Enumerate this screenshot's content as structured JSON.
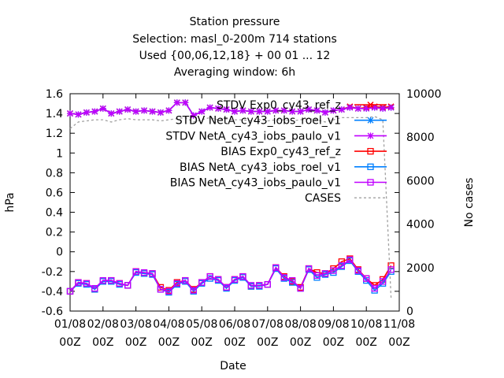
{
  "chart_data": {
    "type": "line",
    "title_lines": [
      "Station pressure",
      "Selection: masl_0-200m    714 stations",
      "Used {00,06,12,18} + 00 01 ... 12",
      "Averaging window:  6h"
    ],
    "xlabel": "Date",
    "ylabel": "hPa",
    "y2label": "No cases",
    "ylim": [
      -0.6,
      1.6
    ],
    "y2lim": [
      0,
      10000
    ],
    "yticks": [
      "-0.6",
      "-0.4",
      "-0.2",
      "0",
      "0.2",
      "0.4",
      "0.6",
      "0.8",
      "1",
      "1.2",
      "1.4",
      "1.6"
    ],
    "y2ticks": [
      "0",
      "2000",
      "4000",
      "6000",
      "8000",
      "10000"
    ],
    "xticks": [
      [
        "01/08",
        "00Z"
      ],
      [
        "02/08",
        "00Z"
      ],
      [
        "03/08",
        "00Z"
      ],
      [
        "04/08",
        "00Z"
      ],
      [
        "05/08",
        "00Z"
      ],
      [
        "06/08",
        "00Z"
      ],
      [
        "07/08",
        "00Z"
      ],
      [
        "08/08",
        "00Z"
      ],
      [
        "09/08",
        "00Z"
      ],
      [
        "10/08",
        "00Z"
      ],
      [
        "11/08",
        "00Z"
      ]
    ],
    "xlim_days": [
      0,
      10
    ],
    "x_days": [
      0.0,
      0.25,
      0.5,
      0.75,
      1.0,
      1.25,
      1.5,
      1.75,
      2.0,
      2.25,
      2.5,
      2.75,
      3.0,
      3.25,
      3.5,
      3.75,
      4.0,
      4.25,
      4.5,
      4.75,
      5.0,
      5.25,
      5.5,
      5.75,
      6.0,
      6.25,
      6.5,
      6.75,
      7.0,
      7.25,
      7.5,
      7.75,
      8.0,
      8.25,
      8.5,
      8.75,
      9.0,
      9.25,
      9.5,
      9.75
    ],
    "legend_position": "top-right",
    "grid": false,
    "series": [
      {
        "name": "STDV Exp0_cy43_ref_z",
        "axis": "y",
        "color": "#ff0000",
        "marker": "x",
        "values": [
          1.4,
          1.39,
          1.41,
          1.42,
          1.45,
          1.4,
          1.42,
          1.44,
          1.42,
          1.43,
          1.42,
          1.41,
          1.43,
          1.51,
          1.51,
          1.38,
          1.42,
          1.46,
          1.45,
          1.44,
          1.42,
          1.43,
          1.42,
          1.42,
          1.42,
          1.43,
          1.43,
          1.42,
          1.42,
          1.44,
          1.43,
          1.41,
          1.43,
          1.44,
          1.47,
          1.45,
          1.46,
          1.47,
          1.46,
          1.47
        ]
      },
      {
        "name": "STDV NetA_cy43_iobs_roel_v1",
        "axis": "y",
        "color": "#0080ff",
        "marker": "star",
        "values": [
          1.4,
          1.39,
          1.41,
          1.42,
          1.45,
          1.4,
          1.42,
          1.44,
          1.42,
          1.43,
          1.42,
          1.41,
          1.43,
          1.51,
          1.51,
          1.38,
          1.42,
          1.46,
          1.45,
          1.44,
          1.42,
          1.43,
          1.42,
          1.42,
          1.42,
          1.43,
          1.43,
          1.42,
          1.42,
          1.44,
          1.43,
          1.41,
          1.43,
          1.44,
          1.46,
          1.45,
          1.45,
          1.46,
          1.45,
          1.46
        ]
      },
      {
        "name": "STDV NetA_cy43_iobs_paulo_v1",
        "axis": "y",
        "color": "#c000ff",
        "marker": "star",
        "values": [
          1.4,
          1.39,
          1.41,
          1.42,
          1.45,
          1.4,
          1.42,
          1.44,
          1.42,
          1.43,
          1.42,
          1.41,
          1.43,
          1.51,
          1.51,
          1.38,
          1.42,
          1.46,
          1.45,
          1.44,
          1.42,
          1.43,
          1.42,
          1.42,
          1.42,
          1.43,
          1.43,
          1.42,
          1.42,
          1.44,
          1.43,
          1.41,
          1.43,
          1.44,
          1.46,
          1.45,
          1.45,
          1.46,
          1.45,
          1.46
        ]
      },
      {
        "name": "BIAS Exp0_cy43_ref_z",
        "axis": "y",
        "color": "#ff0000",
        "marker": "square",
        "values": [
          -0.4,
          -0.31,
          -0.32,
          -0.38,
          -0.3,
          -0.29,
          -0.32,
          -0.34,
          -0.2,
          -0.22,
          -0.22,
          -0.36,
          -0.39,
          -0.31,
          -0.29,
          -0.38,
          -0.31,
          -0.25,
          -0.28,
          -0.36,
          -0.28,
          -0.25,
          -0.35,
          -0.34,
          -0.33,
          -0.16,
          -0.25,
          -0.3,
          -0.36,
          -0.17,
          -0.21,
          -0.22,
          -0.17,
          -0.1,
          -0.07,
          -0.18,
          -0.27,
          -0.34,
          -0.28,
          -0.14
        ]
      },
      {
        "name": "BIAS NetA_cy43_iobs_roel_v1",
        "axis": "y",
        "color": "#0080ff",
        "marker": "square",
        "values": [
          -0.4,
          -0.32,
          -0.33,
          -0.38,
          -0.3,
          -0.3,
          -0.33,
          -0.34,
          -0.21,
          -0.22,
          -0.23,
          -0.38,
          -0.41,
          -0.33,
          -0.3,
          -0.4,
          -0.32,
          -0.27,
          -0.29,
          -0.37,
          -0.29,
          -0.26,
          -0.35,
          -0.35,
          -0.33,
          -0.17,
          -0.27,
          -0.31,
          -0.37,
          -0.18,
          -0.26,
          -0.23,
          -0.21,
          -0.15,
          -0.09,
          -0.2,
          -0.29,
          -0.39,
          -0.32,
          -0.2
        ]
      },
      {
        "name": "BIAS NetA_cy43_iobs_paulo_v1",
        "axis": "y",
        "color": "#c000ff",
        "marker": "square",
        "values": [
          -0.4,
          -0.31,
          -0.32,
          -0.37,
          -0.29,
          -0.29,
          -0.32,
          -0.34,
          -0.2,
          -0.21,
          -0.22,
          -0.38,
          -0.4,
          -0.32,
          -0.29,
          -0.39,
          -0.31,
          -0.25,
          -0.28,
          -0.36,
          -0.28,
          -0.25,
          -0.34,
          -0.34,
          -0.33,
          -0.16,
          -0.26,
          -0.29,
          -0.37,
          -0.17,
          -0.24,
          -0.22,
          -0.19,
          -0.14,
          -0.08,
          -0.19,
          -0.27,
          -0.37,
          -0.3,
          -0.18
        ]
      },
      {
        "name": "CASES",
        "axis": "y2",
        "color": "#a0a0a0",
        "marker": "none",
        "dashed": true,
        "values": [
          8400,
          8700,
          8750,
          8800,
          8800,
          8700,
          8800,
          8850,
          8800,
          8800,
          8800,
          8750,
          8800,
          8850,
          8900,
          8700,
          8800,
          8900,
          8800,
          8850,
          8800,
          8800,
          8750,
          8800,
          8750,
          8800,
          8800,
          8750,
          8800,
          8850,
          8800,
          8700,
          8800,
          8900,
          8900,
          8900,
          8900,
          8950,
          8800,
          600
        ]
      }
    ]
  }
}
